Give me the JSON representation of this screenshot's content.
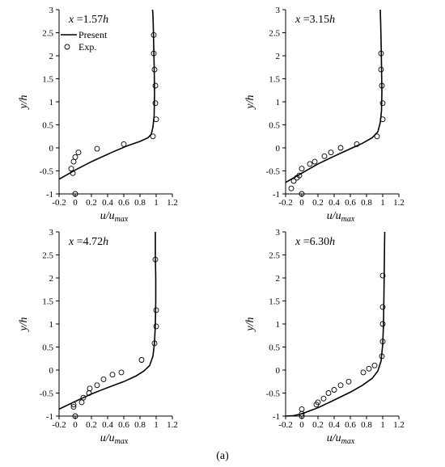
{
  "caption": "(a)",
  "chart_data": [
    {
      "type": "line",
      "panel_label": "x =1.57h",
      "xlabel": "u/umax",
      "ylabel": "y/h",
      "xlim": [
        -0.2,
        1.2
      ],
      "ylim": [
        -1,
        3
      ],
      "xticks": [
        "-0.2",
        "0",
        "0.2",
        "0.4",
        "0.6",
        "0.8",
        "1",
        "1.2"
      ],
      "yticks": [
        "-1",
        "-0.5",
        "0",
        "0.5",
        "1",
        "1.5",
        "2",
        "2.5",
        "3"
      ],
      "legend": {
        "present": "Present",
        "exp": "Exp."
      },
      "series": [
        {
          "name": "Present",
          "kind": "line",
          "x": [
            -0.2,
            0.0,
            0.2,
            0.45,
            0.65,
            0.8,
            0.9,
            0.94,
            0.96,
            0.975,
            0.98,
            0.975,
            0.97,
            0.965,
            0.96,
            0.955
          ],
          "y": [
            -0.68,
            -0.48,
            -0.3,
            -0.1,
            0.05,
            0.14,
            0.22,
            0.3,
            0.45,
            0.7,
            1.2,
            1.8,
            2.2,
            2.6,
            2.9,
            3.0
          ]
        },
        {
          "name": "Exp.",
          "kind": "scatter",
          "x": [
            0.0,
            0.04,
            0.0,
            -0.02,
            -0.05,
            -0.03,
            0.27,
            0.6,
            0.96,
            1.0,
            0.99,
            0.99,
            0.98,
            0.97,
            0.97
          ],
          "y": [
            -1.0,
            -0.1,
            -0.2,
            -0.3,
            -0.45,
            -0.55,
            -0.02,
            0.08,
            0.25,
            0.62,
            0.97,
            1.35,
            1.7,
            2.05,
            2.45
          ]
        }
      ]
    },
    {
      "type": "line",
      "panel_label": "x =3.15h",
      "xlabel": "u/umax",
      "ylabel": "y/h",
      "xlim": [
        -0.2,
        1.2
      ],
      "ylim": [
        -1,
        3
      ],
      "xticks": [
        "-0.2",
        "0",
        "0.2",
        "0.4",
        "0.6",
        "0.8",
        "1",
        "1.2"
      ],
      "yticks": [
        "-1",
        "-0.5",
        "0",
        "0.5",
        "1",
        "1.5",
        "2",
        "2.5",
        "3"
      ],
      "series": [
        {
          "name": "Present",
          "kind": "line",
          "x": [
            -0.2,
            0.0,
            0.2,
            0.4,
            0.6,
            0.75,
            0.87,
            0.94,
            0.97,
            0.985,
            0.99,
            0.985,
            0.98,
            0.975,
            0.97
          ],
          "y": [
            -0.75,
            -0.55,
            -0.35,
            -0.18,
            -0.02,
            0.1,
            0.22,
            0.35,
            0.55,
            0.8,
            1.2,
            1.8,
            2.3,
            2.7,
            3.0
          ]
        },
        {
          "name": "Exp.",
          "kind": "scatter",
          "x": [
            0.0,
            -0.13,
            -0.1,
            -0.06,
            -0.03,
            0.0,
            0.1,
            0.16,
            0.28,
            0.36,
            0.48,
            0.68,
            0.93,
            1.0,
            1.0,
            0.99,
            0.98,
            0.98
          ],
          "y": [
            -1.0,
            -0.88,
            -0.72,
            -0.65,
            -0.6,
            -0.45,
            -0.35,
            -0.3,
            -0.18,
            -0.1,
            0.0,
            0.08,
            0.25,
            0.62,
            0.97,
            1.35,
            1.7,
            2.05
          ]
        }
      ]
    },
    {
      "type": "line",
      "panel_label": "x =4.72h",
      "xlabel": "u/umax",
      "ylabel": "y/h",
      "xlim": [
        -0.2,
        1.2
      ],
      "ylim": [
        -1,
        3
      ],
      "xticks": [
        "-0.2",
        "0",
        "0.2",
        "0.4",
        "0.6",
        "0.8",
        "1",
        "1.2"
      ],
      "yticks": [
        "-1",
        "-0.5",
        "0",
        "0.5",
        "1",
        "1.5",
        "2",
        "2.5",
        "3"
      ],
      "series": [
        {
          "name": "Present",
          "kind": "line",
          "x": [
            -0.2,
            0.0,
            0.2,
            0.4,
            0.6,
            0.75,
            0.85,
            0.92,
            0.96,
            0.98,
            0.99,
            0.995,
            0.995,
            0.99,
            0.99
          ],
          "y": [
            -0.85,
            -0.68,
            -0.52,
            -0.38,
            -0.25,
            -0.13,
            -0.02,
            0.1,
            0.3,
            0.6,
            1.0,
            1.5,
            2.0,
            2.5,
            3.0
          ]
        },
        {
          "name": "Exp.",
          "kind": "scatter",
          "x": [
            0.0,
            -0.02,
            -0.02,
            0.08,
            0.1,
            0.17,
            0.18,
            0.27,
            0.35,
            0.46,
            0.57,
            0.82,
            0.98,
            1.0,
            1.0,
            0.99
          ],
          "y": [
            -1.0,
            -0.8,
            -0.75,
            -0.7,
            -0.6,
            -0.5,
            -0.4,
            -0.33,
            -0.2,
            -0.1,
            -0.05,
            0.22,
            0.58,
            0.95,
            1.3,
            2.4
          ]
        }
      ]
    },
    {
      "type": "line",
      "panel_label": "x =6.30h",
      "xlabel": "u/umax",
      "ylabel": "y/h",
      "xlim": [
        -0.2,
        1.2
      ],
      "ylim": [
        -1,
        3
      ],
      "xticks": [
        "-0.2",
        "0",
        "0.2",
        "0.4",
        "0.6",
        "0.8",
        "1",
        "1.2"
      ],
      "yticks": [
        "-1",
        "-0.5",
        "0",
        "0.5",
        "1",
        "1.5",
        "2",
        "2.5",
        "3"
      ],
      "series": [
        {
          "name": "Present",
          "kind": "line",
          "x": [
            -0.2,
            -0.1,
            0.0,
            0.2,
            0.4,
            0.6,
            0.75,
            0.87,
            0.94,
            0.98,
            1.0,
            1.01,
            1.015,
            1.02,
            1.025
          ],
          "y": [
            -1.0,
            -0.99,
            -0.95,
            -0.82,
            -0.65,
            -0.48,
            -0.33,
            -0.18,
            -0.02,
            0.2,
            0.55,
            1.0,
            1.6,
            2.3,
            3.0
          ]
        },
        {
          "name": "Exp.",
          "kind": "scatter",
          "x": [
            0.0,
            0.0,
            0.0,
            0.18,
            0.2,
            0.27,
            0.33,
            0.4,
            0.48,
            0.58,
            0.76,
            0.83,
            0.9,
            0.99,
            1.0,
            1.0,
            1.0,
            1.0
          ],
          "y": [
            -1.0,
            -0.95,
            -0.85,
            -0.75,
            -0.7,
            -0.62,
            -0.5,
            -0.43,
            -0.33,
            -0.25,
            -0.05,
            0.03,
            0.1,
            0.3,
            0.62,
            1.0,
            1.37,
            2.05
          ]
        }
      ]
    }
  ]
}
